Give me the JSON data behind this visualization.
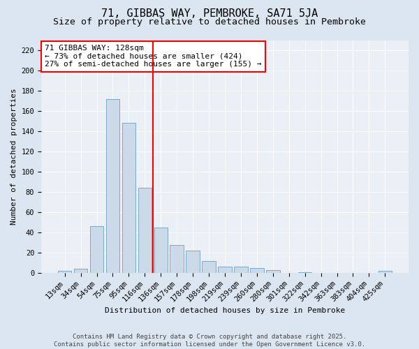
{
  "title": "71, GIBBAS WAY, PEMBROKE, SA71 5JA",
  "subtitle": "Size of property relative to detached houses in Pembroke",
  "xlabel": "Distribution of detached houses by size in Pembroke",
  "ylabel": "Number of detached properties",
  "categories": [
    "13sqm",
    "34sqm",
    "54sqm",
    "75sqm",
    "95sqm",
    "116sqm",
    "136sqm",
    "157sqm",
    "178sqm",
    "198sqm",
    "219sqm",
    "239sqm",
    "260sqm",
    "280sqm",
    "301sqm",
    "322sqm",
    "342sqm",
    "363sqm",
    "383sqm",
    "404sqm",
    "425sqm"
  ],
  "values": [
    2,
    4,
    46,
    172,
    148,
    84,
    45,
    28,
    22,
    12,
    6,
    6,
    5,
    3,
    0,
    1,
    0,
    0,
    0,
    0,
    2
  ],
  "bar_color": "#ccd9e8",
  "bar_edge_color": "#7aaac8",
  "vline_index": 6,
  "vline_color": "red",
  "annotation_text": "71 GIBBAS WAY: 128sqm\n← 73% of detached houses are smaller (424)\n27% of semi-detached houses are larger (155) →",
  "annotation_box_facecolor": "white",
  "annotation_box_edgecolor": "red",
  "ylim": [
    0,
    230
  ],
  "yticks": [
    0,
    20,
    40,
    60,
    80,
    100,
    120,
    140,
    160,
    180,
    200,
    220
  ],
  "footnote_line1": "Contains HM Land Registry data © Crown copyright and database right 2025.",
  "footnote_line2": "Contains public sector information licensed under the Open Government Licence v3.0.",
  "bg_color": "#dce6f0",
  "plot_bg_color": "#eaf0f6",
  "title_fontsize": 11,
  "subtitle_fontsize": 9.5,
  "axis_label_fontsize": 8,
  "tick_fontsize": 7.5,
  "annotation_fontsize": 8,
  "footnote_fontsize": 6.5
}
